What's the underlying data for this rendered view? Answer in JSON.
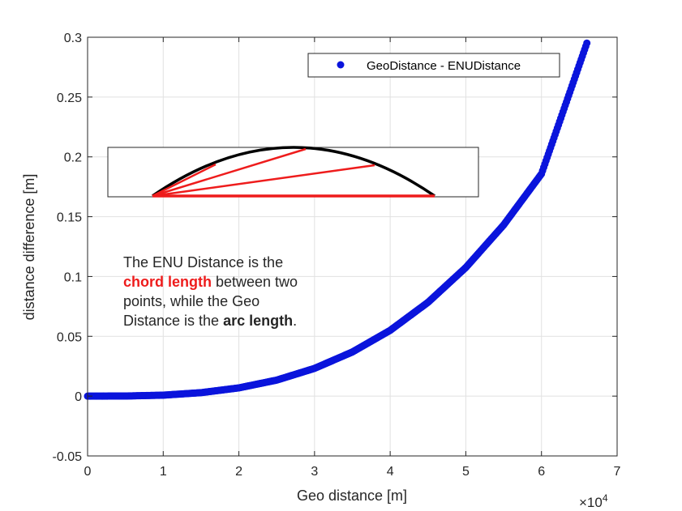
{
  "chart_data": {
    "type": "scatter",
    "xlabel": "Geo distance [m]",
    "ylabel": "distance difference [m]",
    "x_multiplier": "×10",
    "x_multiplier_exp": "4",
    "xlim": [
      0,
      70000
    ],
    "ylim": [
      -0.05,
      0.3
    ],
    "x_ticks": [
      0,
      10000,
      20000,
      30000,
      40000,
      50000,
      60000,
      70000
    ],
    "x_tick_labels": [
      "0",
      "1",
      "2",
      "3",
      "4",
      "5",
      "6",
      "7"
    ],
    "y_ticks": [
      -0.05,
      0,
      0.05,
      0.1,
      0.15,
      0.2,
      0.25,
      0.3
    ],
    "y_tick_labels": [
      "-0.05",
      "0",
      "0.05",
      "0.1",
      "0.15",
      "0.2",
      "0.25",
      "0.3"
    ],
    "grid": true,
    "legend_position": "top-right",
    "series": [
      {
        "name": "GeoDistance -  ENUDistance",
        "color": "#0a14dc",
        "x": [
          0,
          5000,
          10000,
          15000,
          20000,
          25000,
          30000,
          35000,
          40000,
          45000,
          50000,
          55000,
          60000,
          66000
        ],
        "y": [
          0,
          0.0001,
          0.0008,
          0.0029,
          0.0069,
          0.0134,
          0.0232,
          0.0369,
          0.055,
          0.0784,
          0.1075,
          0.1431,
          0.1858,
          0.2951
        ]
      }
    ]
  },
  "annotation": {
    "line1": "The ENU Distance is the",
    "chord": "chord length",
    "line2_rest": " between two",
    "line3": "points, while the Geo",
    "line4_start": "Distance is the ",
    "arc": "arc length",
    "line4_end": "."
  },
  "inset_colors": {
    "arc": "#000000",
    "chords": "#ee1c1c"
  }
}
